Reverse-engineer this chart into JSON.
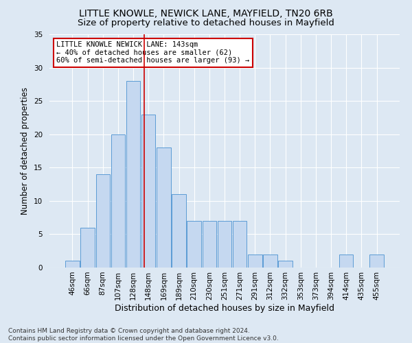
{
  "title": "LITTLE KNOWLE, NEWICK LANE, MAYFIELD, TN20 6RB",
  "subtitle": "Size of property relative to detached houses in Mayfield",
  "xlabel": "Distribution of detached houses by size in Mayfield",
  "ylabel": "Number of detached properties",
  "bar_labels": [
    "46sqm",
    "66sqm",
    "87sqm",
    "107sqm",
    "128sqm",
    "148sqm",
    "169sqm",
    "189sqm",
    "210sqm",
    "230sqm",
    "251sqm",
    "271sqm",
    "291sqm",
    "312sqm",
    "332sqm",
    "353sqm",
    "373sqm",
    "394sqm",
    "414sqm",
    "435sqm",
    "455sqm"
  ],
  "bar_values": [
    1,
    6,
    14,
    20,
    28,
    23,
    18,
    11,
    7,
    7,
    7,
    7,
    2,
    2,
    1,
    0,
    0,
    0,
    2,
    0,
    2
  ],
  "bar_color": "#c5d8f0",
  "bar_edge_color": "#5b9bd5",
  "background_color": "#dde8f3",
  "grid_color": "#ffffff",
  "vline_x": 4.72,
  "vline_color": "#cc0000",
  "annotation_text": "LITTLE KNOWLE NEWICK LANE: 143sqm\n← 40% of detached houses are smaller (62)\n60% of semi-detached houses are larger (93) →",
  "annotation_box_color": "#ffffff",
  "annotation_box_edge": "#cc0000",
  "ylim": [
    0,
    35
  ],
  "yticks": [
    0,
    5,
    10,
    15,
    20,
    25,
    30,
    35
  ],
  "footer": "Contains HM Land Registry data © Crown copyright and database right 2024.\nContains public sector information licensed under the Open Government Licence v3.0.",
  "title_fontsize": 10,
  "subtitle_fontsize": 9.5,
  "xlabel_fontsize": 9,
  "ylabel_fontsize": 8.5,
  "tick_fontsize": 7.5,
  "annot_fontsize": 7.5,
  "footer_fontsize": 6.5
}
